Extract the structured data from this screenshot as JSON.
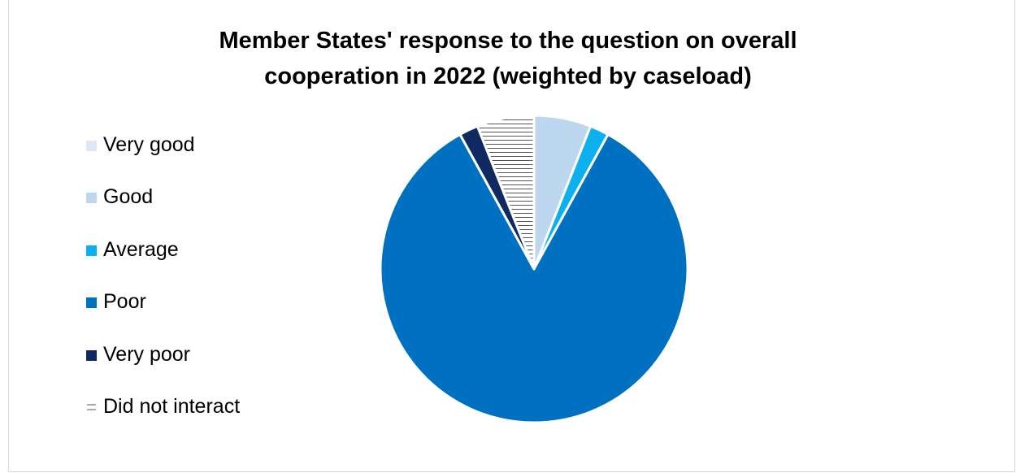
{
  "chart_data": {
    "type": "pie",
    "title": "Member States' response to the question on overall cooperation in 2022 (weighted by caseload)",
    "title_lines": [
      "Member States' response to the question on overall",
      "cooperation in 2022 (weighted by caseload)"
    ],
    "legend_position": "left",
    "categories": [
      "Very good",
      "Good",
      "Average",
      "Poor",
      "Very poor",
      "Did not interact"
    ],
    "values": [
      0,
      6,
      2,
      84,
      2,
      6
    ],
    "unit": "%",
    "colors": [
      "#dbe9f6",
      "#bdd7ee",
      "#0cb0ec",
      "#0070c0",
      "#0e2a60",
      "#ffffff"
    ],
    "patterns": [
      "solid",
      "solid",
      "solid",
      "solid",
      "solid",
      "horizontal-lines"
    ]
  }
}
